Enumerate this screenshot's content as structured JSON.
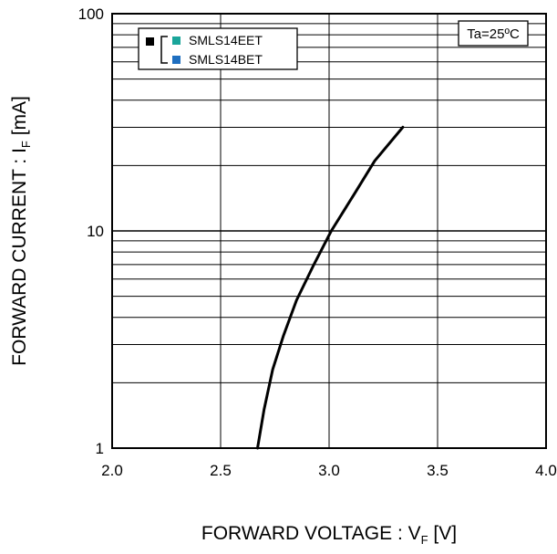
{
  "chart_data": {
    "type": "line",
    "title": "",
    "xlabel": {
      "main": "FORWARD VOLTAGE : V",
      "sub": "F",
      "unit": " [V]"
    },
    "ylabel": {
      "main": "FORWARD CURRENT : I",
      "sub": "F",
      "unit": " [mA]"
    },
    "xlim": [
      2.0,
      4.0
    ],
    "ylim": [
      1,
      100
    ],
    "yscale": "log",
    "grid": true,
    "xticks": [
      2.0,
      2.5,
      3.0,
      3.5,
      4.0
    ],
    "xtick_labels": [
      "2.0",
      "2.5",
      "3.0",
      "3.5",
      "4.0"
    ],
    "yticks": [
      1,
      10,
      100
    ],
    "ytick_labels": [
      "1",
      "10",
      "100"
    ],
    "legend": {
      "placement": "top-left",
      "entries": [
        {
          "label": "SMLS14EET",
          "color": "#1aa59a"
        },
        {
          "label": "SMLS14BET",
          "color": "#1f6fc0"
        }
      ],
      "group_marker_color": "#000000"
    },
    "annotation": "Ta=25ºC",
    "series": [
      {
        "color": "#000000",
        "x": [
          2.67,
          2.7,
          2.74,
          2.79,
          2.85,
          2.93,
          3.01,
          3.12,
          3.21,
          3.34
        ],
        "y": [
          1.0,
          1.5,
          2.3,
          3.3,
          4.8,
          7.0,
          10.0,
          15.0,
          21.0,
          30.0
        ]
      }
    ]
  }
}
